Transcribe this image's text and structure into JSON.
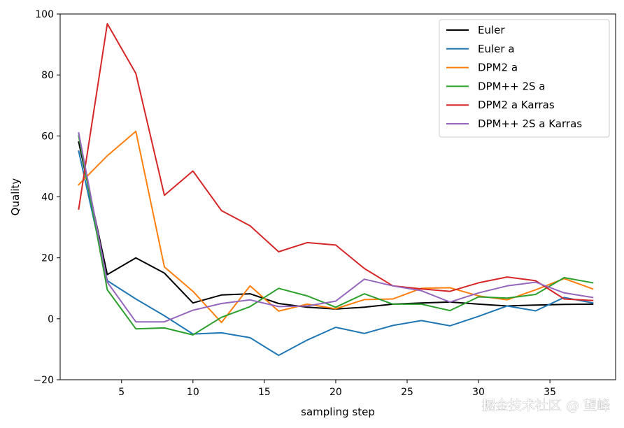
{
  "watermark": "掘金技术社区 @ 望峰",
  "chart_data": {
    "type": "line",
    "title": "",
    "xlabel": "sampling step",
    "ylabel": "Quality",
    "xlim": [
      0.7,
      39.6
    ],
    "ylim": [
      -20,
      100
    ],
    "xticks": [
      5,
      10,
      15,
      20,
      25,
      30,
      35
    ],
    "yticks": [
      -20,
      0,
      20,
      40,
      60,
      80,
      100
    ],
    "grid": false,
    "legend_position": "top-right",
    "x": [
      2,
      4,
      6,
      8,
      10,
      12,
      14,
      16,
      18,
      20,
      22,
      24,
      26,
      28,
      30,
      32,
      34,
      36,
      38
    ],
    "series": [
      {
        "name": "Euler",
        "color": "#000000",
        "values": [
          58,
          14.5,
          20,
          15,
          5.2,
          7.8,
          8.2,
          5,
          3.8,
          3.2,
          3.8,
          4.8,
          5.2,
          5.5,
          4.8,
          4.2,
          4.5,
          4.7,
          4.8
        ]
      },
      {
        "name": "Euler a",
        "color": "#1f77b4",
        "values": [
          55,
          12.5,
          6.5,
          1,
          -5,
          -4.6,
          -6.2,
          -12,
          -7,
          -2.8,
          -4.8,
          -2.2,
          -0.6,
          -2.3,
          0.8,
          4.2,
          2.6,
          7,
          5.2
        ]
      },
      {
        "name": "DPM2 a",
        "color": "#ff7f0e",
        "values": [
          44,
          53.5,
          61.5,
          17,
          9,
          -1.2,
          10.8,
          2.5,
          4.8,
          3.3,
          6.3,
          6.5,
          10,
          10.2,
          7.5,
          6.2,
          9.5,
          13.2,
          9.8
        ]
      },
      {
        "name": "DPM++ 2S a",
        "color": "#2ca02c",
        "values": [
          60,
          9.5,
          -3.3,
          -3,
          -5.3,
          0.5,
          4,
          10,
          7.5,
          3.8,
          8.2,
          4.8,
          4.8,
          2.7,
          7.2,
          6.8,
          8,
          13.5,
          11.8
        ]
      },
      {
        "name": "DPM2 a Karras",
        "color": "#d62728",
        "values": [
          36,
          96.8,
          80.5,
          40.5,
          48.5,
          35.5,
          30.5,
          22,
          25,
          24.2,
          16.5,
          10.8,
          9.8,
          9,
          11.8,
          13.7,
          12.5,
          6.5,
          6
        ]
      },
      {
        "name": "DPM++ 2S a Karras",
        "color": "#9467bd",
        "values": [
          61,
          12,
          -1,
          -1,
          2.8,
          5,
          6.2,
          4,
          4.2,
          5.8,
          13,
          10.8,
          9.2,
          5.5,
          8.5,
          10.8,
          12,
          8.5,
          7
        ]
      }
    ]
  }
}
